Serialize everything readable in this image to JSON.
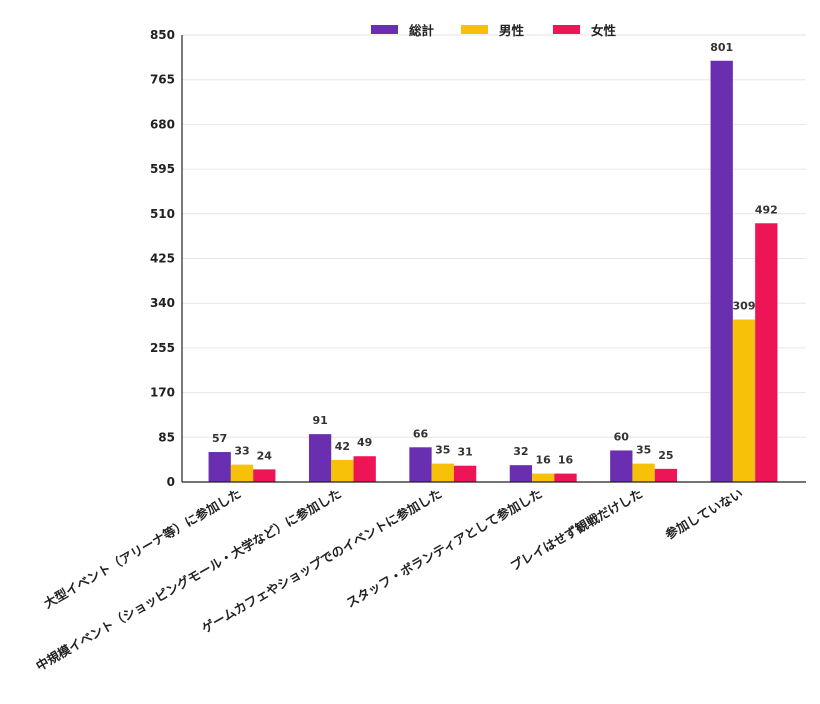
{
  "chart_data": {
    "type": "bar",
    "categories": [
      "大型イベント（アリーナ等）に参加した",
      "中規模イベント（ショッピングモール・大学など）に参加した",
      "ゲームカフェやショップでのイベントに参加した",
      "スタッフ・ボランティアとして参加した",
      "プレイはせず観戦だけした",
      "参加していない"
    ],
    "series": [
      {
        "name": "総計",
        "color": "#6a2fb0",
        "values": [
          57,
          91,
          66,
          32,
          60,
          801
        ]
      },
      {
        "name": "男性",
        "color": "#f7c10a",
        "values": [
          33,
          42,
          35,
          16,
          35,
          309
        ]
      },
      {
        "name": "女性",
        "color": "#ee1556",
        "values": [
          24,
          49,
          31,
          16,
          25,
          492
        ]
      }
    ],
    "yticks": [
      0,
      85,
      170,
      255,
      340,
      425,
      510,
      595,
      680,
      765,
      850
    ],
    "ylim": [
      0,
      850
    ],
    "grid": true,
    "legend": "top-center",
    "xlabel": "",
    "ylabel": "",
    "title": ""
  }
}
